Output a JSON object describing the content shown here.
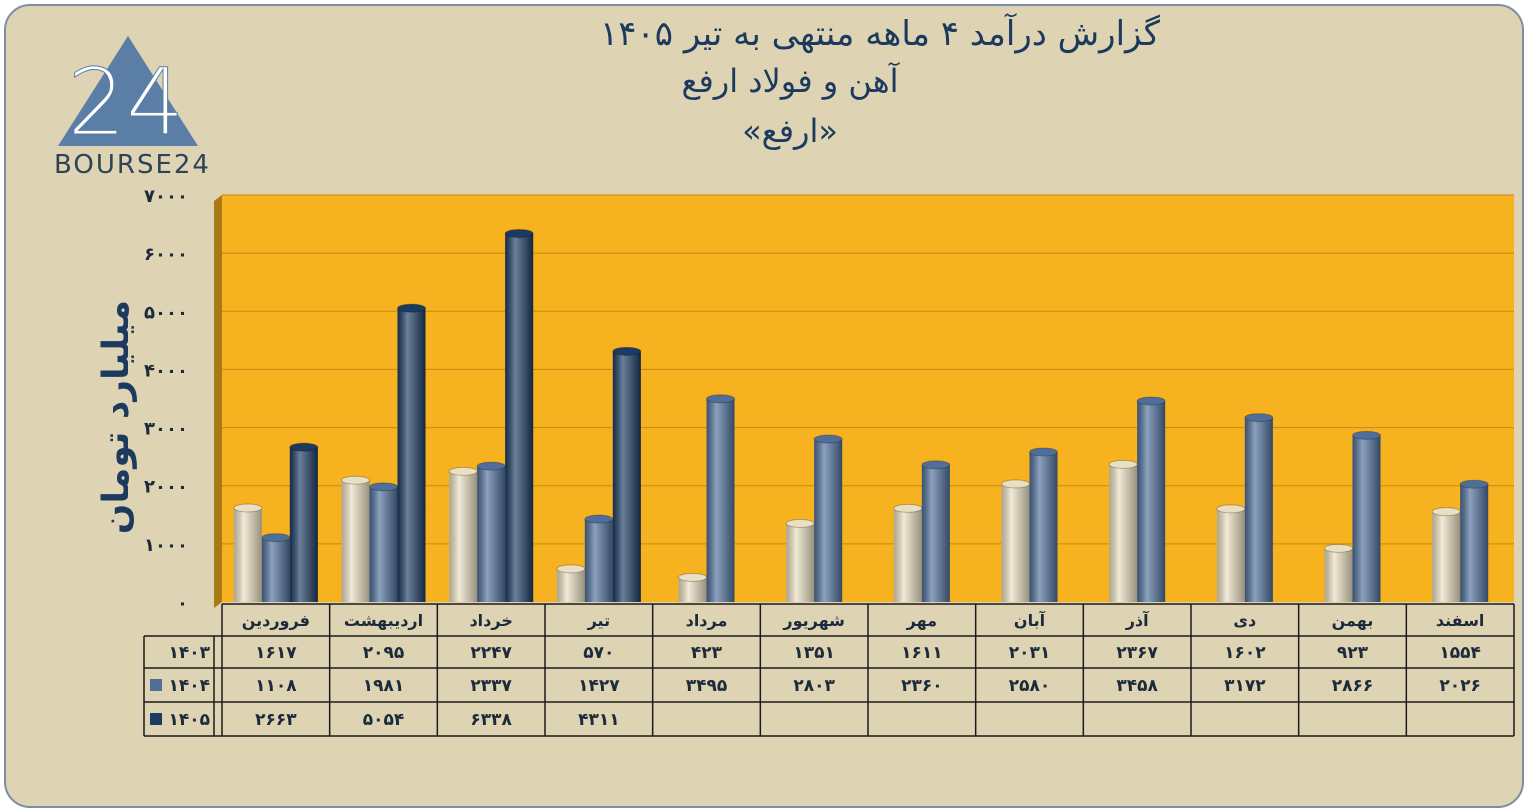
{
  "title": {
    "line1": "گزارش  درآمد ۴ ماهه منتهی به تیر ۱۴۰۵",
    "line2": "آهن و فولاد ارفع",
    "line3": "«ارفع»"
  },
  "logo": {
    "text": "BOURSE24",
    "mark": "24"
  },
  "colors": {
    "background": "#ded3b3",
    "plot_area": "#f7b21f",
    "series_1403": "#eadfc1",
    "series_1404": "#4f6f9a",
    "series_1405": "#1c3b63",
    "title": "#1c3a5e"
  },
  "chart_data": {
    "type": "bar",
    "ylabel": "میلیارد تومان",
    "ylim": [
      0,
      7000
    ],
    "yticks": [
      "۰",
      "۱۰۰۰",
      "۲۰۰۰",
      "۳۰۰۰",
      "۴۰۰۰",
      "۵۰۰۰",
      "۶۰۰۰",
      "۷۰۰۰"
    ],
    "ytick_values": [
      0,
      1000,
      2000,
      3000,
      4000,
      5000,
      6000,
      7000
    ],
    "grid": true,
    "categories": [
      "فروردین",
      "اردیبهشت",
      "خرداد",
      "تیر",
      "مرداد",
      "شهریور",
      "مهر",
      "آبان",
      "آذر",
      "دی",
      "بهمن",
      "اسفند"
    ],
    "series": [
      {
        "name": "۱۴۰۳",
        "values": [
          1617,
          2095,
          2247,
          570,
          423,
          1351,
          1611,
          2031,
          2367,
          1602,
          923,
          1554
        ],
        "labels": [
          "۱۶۱۷",
          "۲۰۹۵",
          "۲۲۴۷",
          "۵۷۰",
          "۴۲۳",
          "۱۳۵۱",
          "۱۶۱۱",
          "۲۰۳۱",
          "۲۳۶۷",
          "۱۶۰۲",
          "۹۲۳",
          "۱۵۵۴"
        ]
      },
      {
        "name": "۱۴۰۴",
        "values": [
          1108,
          1981,
          2337,
          1427,
          3495,
          2803,
          2360,
          2580,
          3458,
          3172,
          2866,
          2026
        ],
        "labels": [
          "۱۱۰۸",
          "۱۹۸۱",
          "۲۳۳۷",
          "۱۴۲۷",
          "۳۴۹۵",
          "۲۸۰۳",
          "۲۳۶۰",
          "۲۵۸۰",
          "۳۴۵۸",
          "۳۱۷۲",
          "۲۸۶۶",
          "۲۰۲۶"
        ]
      },
      {
        "name": "۱۴۰۵",
        "values": [
          2663,
          5054,
          6338,
          4311,
          null,
          null,
          null,
          null,
          null,
          null,
          null,
          null
        ],
        "labels": [
          "۲۶۶۳",
          "۵۰۵۴",
          "۶۳۳۸",
          "۴۳۱۱",
          "",
          "",
          "",
          "",
          "",
          "",
          "",
          ""
        ]
      }
    ]
  }
}
